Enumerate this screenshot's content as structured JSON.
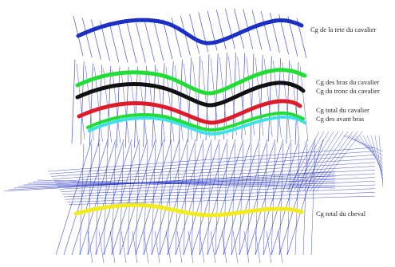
{
  "labels": {
    "head": "Cg de la tete du cavalier",
    "arms": "Cg des bras du cavalier",
    "trunk": "Cg du tronc du cavalier",
    "rider_total": "Cg total du cavalier",
    "forearms": "Cg des avant bras",
    "horse_total": "Cg total du cheval"
  },
  "colors": {
    "head": "#1c2fc4",
    "arms": "#22dd33",
    "trunk": "#111111",
    "rider_total": "#dd1c2a",
    "forearms": "#3fe0e6",
    "horse_total": "#f2ec1e",
    "sticks": "#1a2bbf"
  }
}
